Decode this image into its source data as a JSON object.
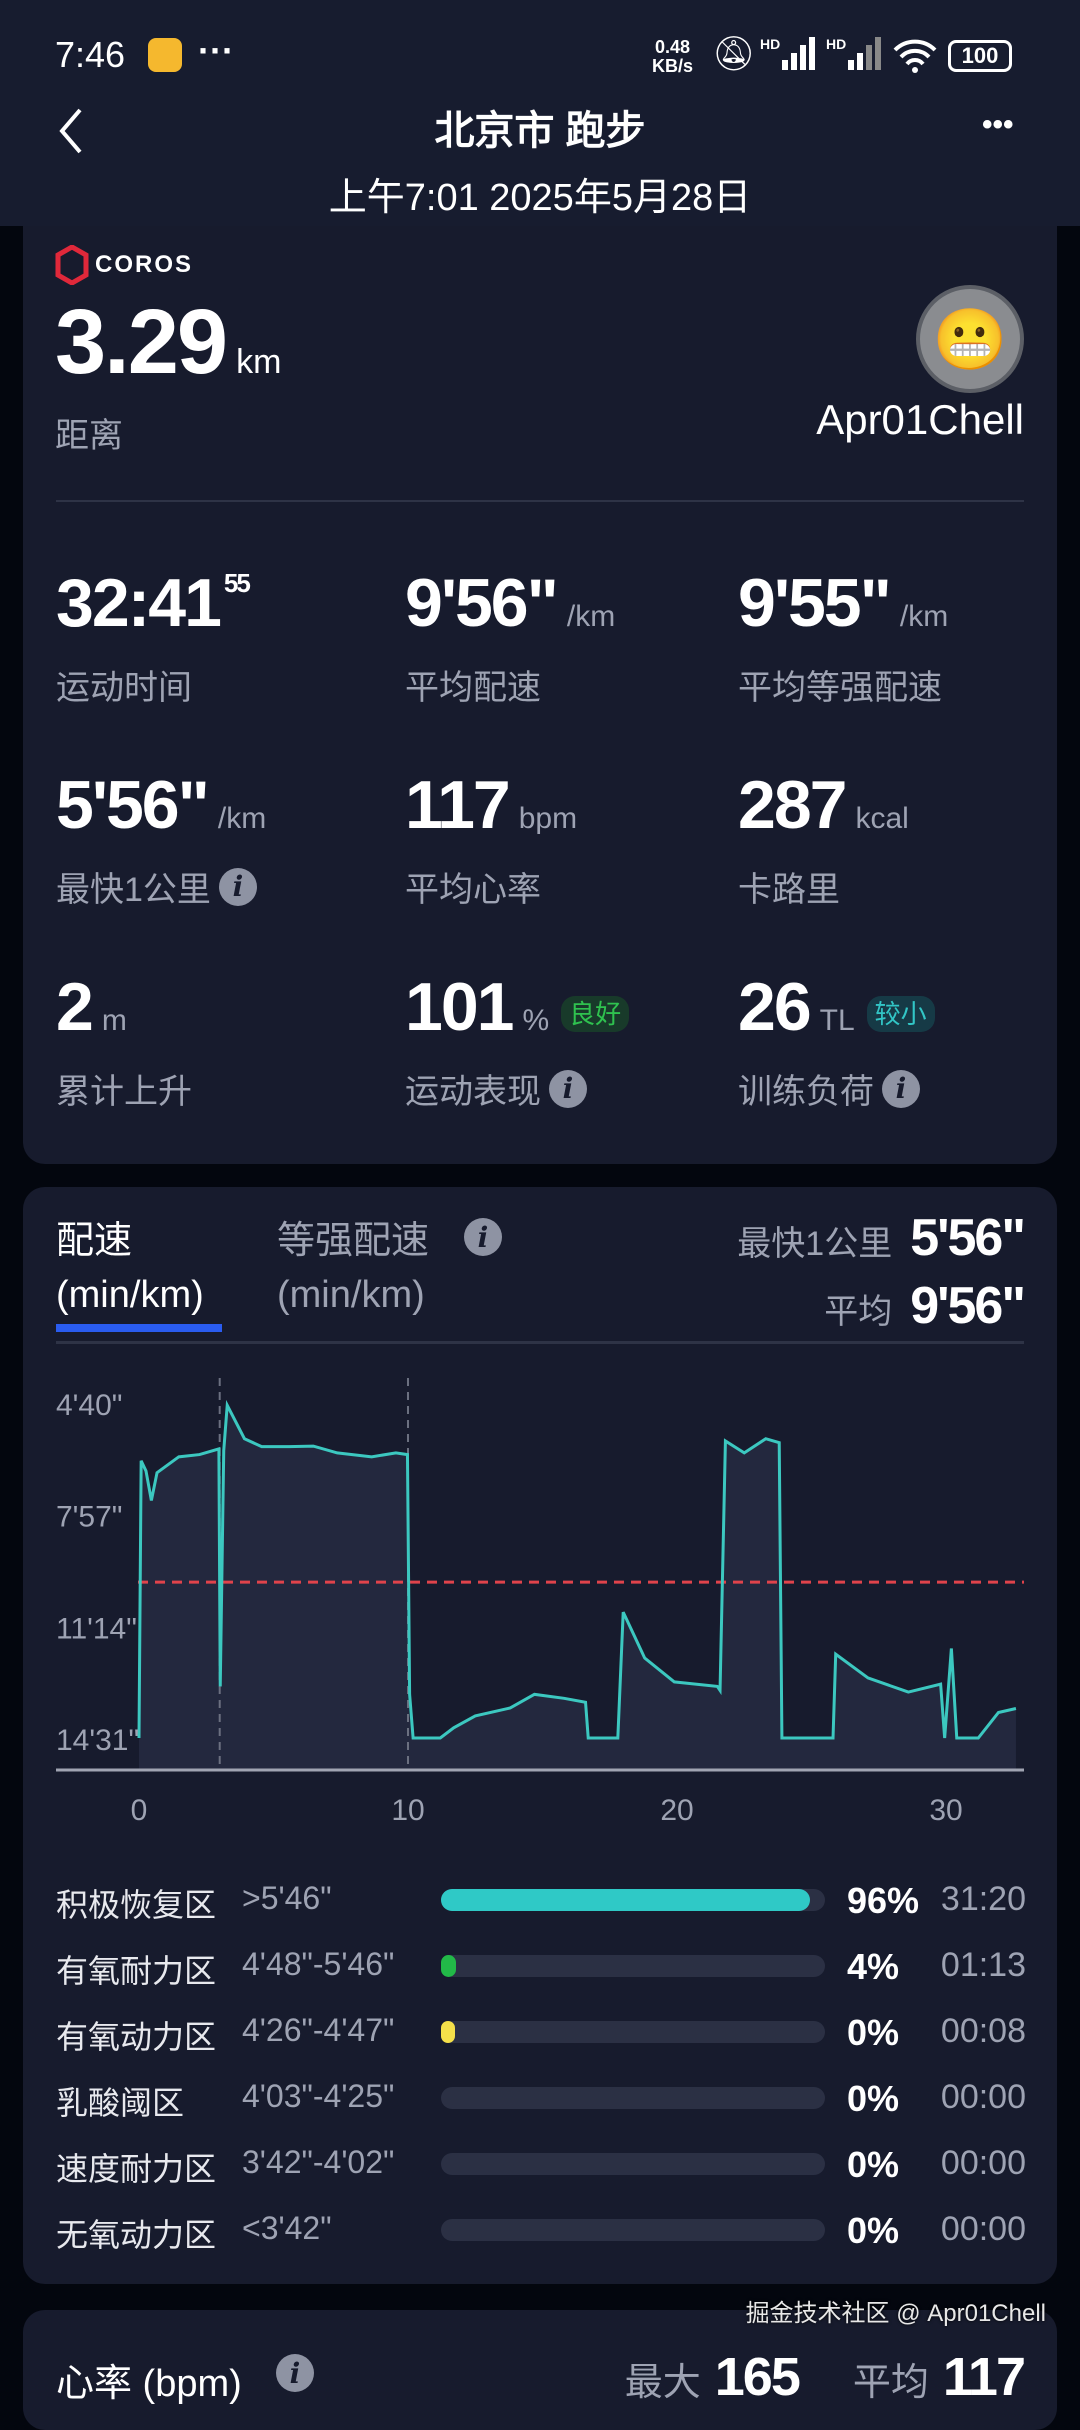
{
  "status_bar": {
    "time": "7:46",
    "more": "···",
    "net_speed_top": "0.48",
    "net_speed_bottom": "KB/s",
    "hd1": "HD",
    "hd2": "HD",
    "battery": "100"
  },
  "header": {
    "title": "北京市 跑步",
    "subtitle": "上午7:01 2025年5月28日",
    "more": "•••"
  },
  "summary": {
    "brand": "COROS",
    "distance": {
      "value": "3.29",
      "unit": "km",
      "label": "距离"
    },
    "user": {
      "name": "Apr01Chell"
    },
    "stats": [
      {
        "value": "32:41",
        "sup": "55",
        "unit": "",
        "label": "运动时间",
        "info": false
      },
      {
        "value": "9'56\"",
        "unit": "/km",
        "label": "平均配速",
        "info": false
      },
      {
        "value": "9'55\"",
        "unit": "/km",
        "label": "平均等强配速",
        "info": false
      },
      {
        "value": "5'56\"",
        "unit": "/km",
        "label": "最快1公里",
        "info": true
      },
      {
        "value": "117",
        "unit": "bpm",
        "label": "平均心率",
        "info": false
      },
      {
        "value": "287",
        "unit": "kcal",
        "label": "卡路里",
        "info": false
      },
      {
        "value": "2",
        "unit": "m",
        "label": "累计上升",
        "info": false
      },
      {
        "value": "101",
        "unit": "%",
        "label": "运动表现",
        "badge": "良好",
        "info": true
      },
      {
        "value": "26",
        "unit": "TL",
        "label": "训练负荷",
        "badge": "较小",
        "info": true
      }
    ],
    "badge_colors": {
      "good": "#2fc24f",
      "small": "#32c6c6"
    }
  },
  "pace": {
    "tabs": [
      {
        "label": "配速",
        "sub": "(min/km)",
        "active": true
      },
      {
        "label": "等强配速",
        "sub": "(min/km)",
        "active": false
      }
    ],
    "fastest_label": "最快1公里",
    "fastest_value": "5'56\"",
    "avg_label": "平均",
    "avg_value": "9'56\"",
    "accent": "#2a5cf0"
  },
  "chart_data": {
    "type": "area",
    "xlabel": "",
    "ylabel": "",
    "x_unit": "min",
    "y_unit": "seconds per km (pace, inverted axis)",
    "yticks": [
      {
        "label": "4'40\"",
        "value": 280
      },
      {
        "label": "7'57\"",
        "value": 477
      },
      {
        "label": "11'14\"",
        "value": 674
      },
      {
        "label": "14'31\"",
        "value": 871
      }
    ],
    "xticks": [
      {
        "label": "0",
        "value": 0
      },
      {
        "label": "10",
        "value": 10
      },
      {
        "label": "20",
        "value": 20
      },
      {
        "label": "30",
        "value": 30
      }
    ],
    "xlim": [
      0,
      32.7
    ],
    "ylim": [
      280,
      871
    ],
    "y_inverted": true,
    "average_line": 596,
    "split_markers": [
      3,
      10
    ],
    "line_color": "#3cc8c0",
    "avg_color": "#e0434b",
    "points": [
      [
        0,
        871
      ],
      [
        0.08,
        382
      ],
      [
        0.26,
        400
      ],
      [
        0.46,
        452
      ],
      [
        0.67,
        403
      ],
      [
        1.48,
        375
      ],
      [
        2.25,
        371
      ],
      [
        2.97,
        361
      ],
      [
        3.02,
        780
      ],
      [
        3.15,
        364
      ],
      [
        3.28,
        284
      ],
      [
        3.92,
        343
      ],
      [
        4.56,
        357
      ],
      [
        5.58,
        357
      ],
      [
        6.48,
        356
      ],
      [
        7.37,
        368
      ],
      [
        8.65,
        375
      ],
      [
        9.55,
        368
      ],
      [
        9.98,
        371
      ],
      [
        10.06,
        794
      ],
      [
        10.19,
        871
      ],
      [
        11.2,
        871
      ],
      [
        11.7,
        853
      ],
      [
        12.5,
        832
      ],
      [
        13.8,
        818
      ],
      [
        14.7,
        794
      ],
      [
        15.8,
        801
      ],
      [
        16.6,
        808
      ],
      [
        16.7,
        871
      ],
      [
        17.8,
        871
      ],
      [
        18.0,
        649
      ],
      [
        18.8,
        730
      ],
      [
        19.9,
        772
      ],
      [
        21.5,
        780
      ],
      [
        21.6,
        787
      ],
      [
        21.8,
        347
      ],
      [
        22.5,
        368
      ],
      [
        23.3,
        343
      ],
      [
        23.8,
        350
      ],
      [
        23.9,
        871
      ],
      [
        25.8,
        871
      ],
      [
        25.9,
        723
      ],
      [
        27.1,
        765
      ],
      [
        28.6,
        790
      ],
      [
        29.8,
        776
      ],
      [
        29.95,
        871
      ],
      [
        30.2,
        713
      ],
      [
        30.4,
        871
      ],
      [
        31.2,
        871
      ],
      [
        31.95,
        826
      ],
      [
        32.6,
        819
      ]
    ]
  },
  "zones": [
    {
      "name": "积极恢复区",
      "range": ">5'46\"",
      "pct": "96%",
      "fraction": 0.96,
      "time": "31:20",
      "color": "#2fc9c6"
    },
    {
      "name": "有氧耐力区",
      "range": "4'48\"-5'46\"",
      "pct": "4%",
      "fraction": 0.04,
      "time": "01:13",
      "color": "#22b948"
    },
    {
      "name": "有氧动力区",
      "range": "4'26\"-4'47\"",
      "pct": "0%",
      "fraction": 0.004,
      "time": "00:08",
      "color": "#f5e04a"
    },
    {
      "name": "乳酸阈区",
      "range": "4'03\"-4'25\"",
      "pct": "0%",
      "fraction": 0,
      "time": "00:00",
      "color": "#f09a30"
    },
    {
      "name": "速度耐力区",
      "range": "3'42\"-4'02\"",
      "pct": "0%",
      "fraction": 0,
      "time": "00:00",
      "color": "#f0603a"
    },
    {
      "name": "无氧动力区",
      "range": "<3'42\"",
      "pct": "0%",
      "fraction": 0,
      "time": "00:00",
      "color": "#e0334b"
    }
  ],
  "heart_rate": {
    "title": "心率 (bpm)",
    "max_label": "最大",
    "max_value": "165",
    "avg_label": "平均",
    "avg_value": "117"
  },
  "watermark": "掘金技术社区 @ Apr01Chell"
}
